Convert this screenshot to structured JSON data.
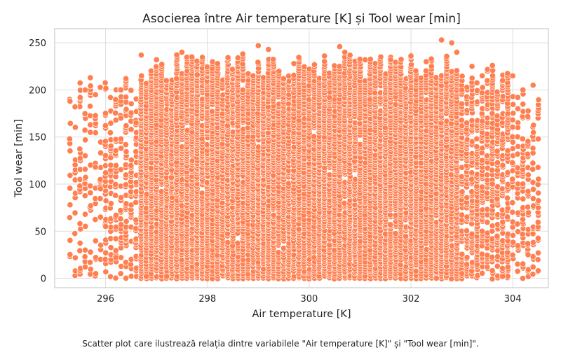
{
  "chart_data": {
    "type": "scatter",
    "title": "Asocierea între Air temperature [K] și Tool wear [min]",
    "xlabel": "Air temperature [K]",
    "ylabel": "Tool wear [min]",
    "xlim": [
      295.0,
      304.7
    ],
    "ylim": [
      -10,
      265
    ],
    "x_ticks": [
      296,
      298,
      300,
      302,
      304
    ],
    "y_ticks": [
      0,
      50,
      100,
      150,
      200,
      250
    ],
    "grid": true,
    "legend": "none",
    "point_color": "#FF7F50",
    "point_edge": "#ffffff",
    "summary": {
      "x_min": 295.3,
      "x_max": 304.5,
      "y_min": 0,
      "y_max": 253
    },
    "sample_points": [
      [
        295.3,
        188
      ],
      [
        295.4,
        182
      ],
      [
        295.5,
        192
      ],
      [
        295.6,
        200
      ],
      [
        295.6,
        130
      ],
      [
        295.6,
        68
      ],
      [
        295.6,
        30
      ],
      [
        295.6,
        12
      ],
      [
        295.7,
        213
      ],
      [
        295.7,
        155
      ],
      [
        295.8,
        118
      ],
      [
        295.9,
        95
      ],
      [
        295.9,
        65
      ],
      [
        296.0,
        112
      ],
      [
        296.0,
        55
      ],
      [
        296.1,
        128
      ],
      [
        296.2,
        42
      ],
      [
        296.2,
        22
      ],
      [
        296.3,
        200
      ],
      [
        296.3,
        170
      ],
      [
        296.4,
        212
      ],
      [
        296.4,
        0
      ],
      [
        296.6,
        165
      ],
      [
        296.7,
        237
      ],
      [
        296.8,
        2
      ],
      [
        297.0,
        232
      ],
      [
        297.2,
        2
      ],
      [
        297.5,
        240
      ],
      [
        297.8,
        216
      ],
      [
        298.2,
        228
      ],
      [
        298.6,
        234
      ],
      [
        299.0,
        247
      ],
      [
        299.2,
        243
      ],
      [
        299.7,
        228
      ],
      [
        300.3,
        236
      ],
      [
        300.6,
        246
      ],
      [
        300.7,
        240
      ],
      [
        301.1,
        232
      ],
      [
        301.6,
        232
      ],
      [
        302.0,
        236
      ],
      [
        302.3,
        230
      ],
      [
        302.6,
        253
      ],
      [
        302.8,
        250
      ],
      [
        302.9,
        240
      ],
      [
        303.0,
        200
      ],
      [
        303.2,
        225
      ],
      [
        303.4,
        215
      ],
      [
        303.6,
        226
      ],
      [
        303.6,
        100
      ],
      [
        303.8,
        210
      ],
      [
        304.0,
        215
      ],
      [
        304.1,
        160
      ],
      [
        304.2,
        200
      ],
      [
        304.4,
        205
      ],
      [
        304.3,
        25
      ],
      [
        304.4,
        12
      ],
      [
        304.5,
        8
      ],
      [
        303.8,
        2
      ],
      [
        303.0,
        5
      ],
      [
        302.5,
        0
      ]
    ]
  },
  "caption": "Scatter plot care ilustrează relația dintre variabilele \"Air temperature [K]\" și \"Tool wear [min]\"."
}
